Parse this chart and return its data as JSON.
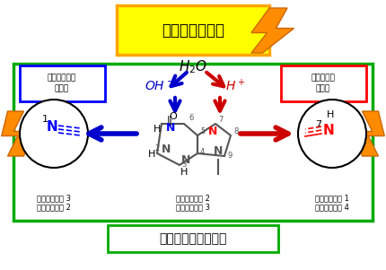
{
  "title_top": "水の放射線分解",
  "title_top_bg": "#FFFF00",
  "title_top_border": "#FFA500",
  "h2o_label": "H$_2$O",
  "oh_label": "OH$^-$",
  "h_label": "H$^+$",
  "box_left_text": "塩基性水溶液\nで再現",
  "box_left_border": "#0000FF",
  "box_right_text": "酸性水溶液\nで再現",
  "box_right_border": "#FF0000",
  "outer_box_border": "#00AA00",
  "title_bottom": "核酸塩基の構造変化",
  "title_bottom_bg": "#FFFFFF",
  "title_bottom_border": "#00AA00",
  "text_left_line1": "二重結合窒素 3",
  "text_left_line2": "一重結合窒素 2",
  "text_center_line1": "二重結合窒素 2",
  "text_center_line2": "一重結合窒素 3",
  "text_right_line1": "二重結合窒素 1",
  "text_right_line2": "一重結合窒素 4",
  "arrow_blue": "#0000CC",
  "arrow_red": "#CC0000",
  "arrow_left_color": "#0000CC",
  "arrow_right_color": "#CC0000",
  "lightning_color1": "#FF8C00",
  "lightning_color2": "#FFD700",
  "N_color": "#0000FF",
  "N_right_color": "#FF0000",
  "bond_color": "#0000FF",
  "bond_right_color": "#FF0000"
}
